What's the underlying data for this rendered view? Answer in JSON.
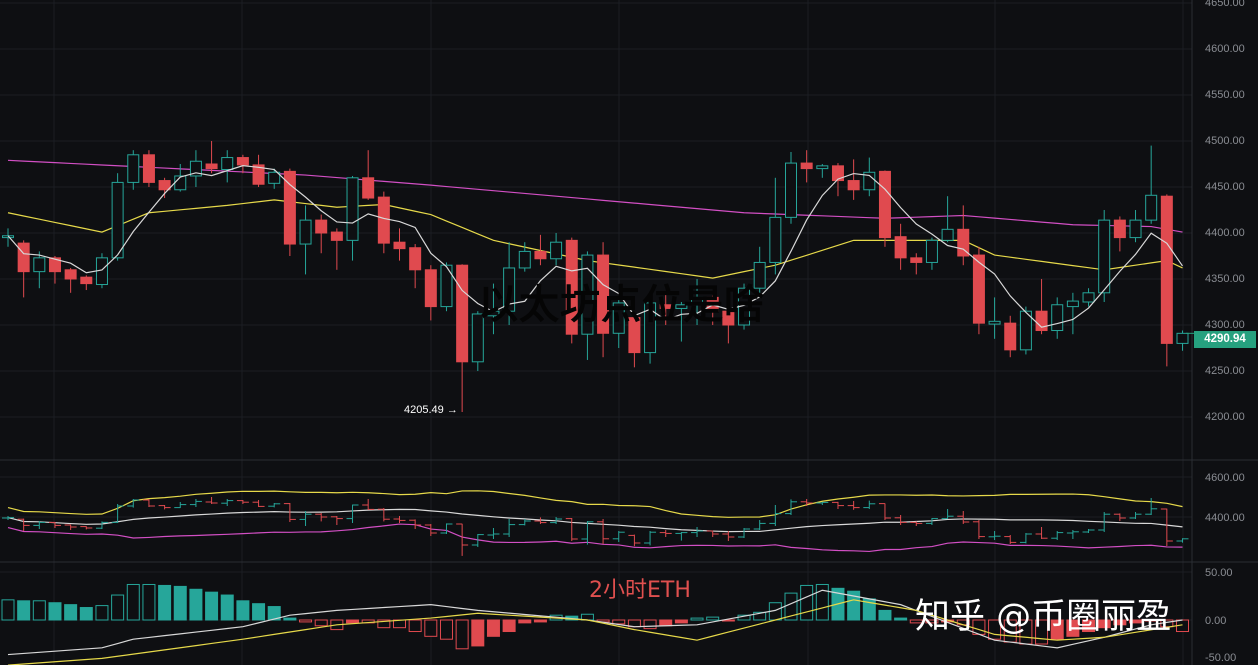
{
  "chart_data": {
    "type": "candlestick",
    "title": "以太坊点位是啥",
    "period_label": "2小时ETH",
    "colors": {
      "up": "#26a69a",
      "down": "#e04a4f",
      "ma_fast": "#d8d8d8",
      "ma_mid": "#e6d94a",
      "ma_slow": "#d24fc4",
      "background": "#0e0f12",
      "grid": "#1c1e23",
      "axis_text": "#8a8d93",
      "last_price_bg": "#26a17f"
    },
    "price_axis": {
      "ylim": [
        4200,
        4650
      ],
      "ticks": [
        "4650.00",
        "4600.00",
        "4550.00",
        "4500.00",
        "4450.00",
        "4400.00",
        "4350.00",
        "4300.00",
        "4250.00",
        "4200.00"
      ]
    },
    "last_price": "4290.94",
    "low_marker": "4205.49 →",
    "candles_ohlc": [
      [
        4395,
        4405,
        4385,
        4397
      ],
      [
        4389,
        4392,
        4330,
        4358
      ],
      [
        4358,
        4380,
        4340,
        4373
      ],
      [
        4373,
        4375,
        4345,
        4358
      ],
      [
        4360,
        4362,
        4335,
        4350
      ],
      [
        4352,
        4354,
        4338,
        4345
      ],
      [
        4344,
        4378,
        4340,
        4373
      ],
      [
        4373,
        4465,
        4370,
        4455
      ],
      [
        4455,
        4490,
        4447,
        4485
      ],
      [
        4485,
        4490,
        4450,
        4455
      ],
      [
        4457,
        4460,
        4438,
        4447
      ],
      [
        4447,
        4475,
        4445,
        4462
      ],
      [
        4462,
        4490,
        4450,
        4478
      ],
      [
        4475,
        4500,
        4465,
        4470
      ],
      [
        4469,
        4490,
        4455,
        4482
      ],
      [
        4482,
        4485,
        4465,
        4474
      ],
      [
        4474,
        4485,
        4450,
        4453
      ],
      [
        4454,
        4470,
        4448,
        4466
      ],
      [
        4467,
        4470,
        4375,
        4388
      ],
      [
        4388,
        4430,
        4355,
        4414
      ],
      [
        4414,
        4420,
        4378,
        4400
      ],
      [
        4401,
        4405,
        4360,
        4392
      ],
      [
        4392,
        4462,
        4370,
        4460
      ],
      [
        4460,
        4490,
        4436,
        4438
      ],
      [
        4439,
        4445,
        4378,
        4389
      ],
      [
        4390,
        4405,
        4370,
        4383
      ],
      [
        4384,
        4388,
        4340,
        4360
      ],
      [
        4360,
        4365,
        4305,
        4320
      ],
      [
        4320,
        4368,
        4315,
        4365
      ],
      [
        4365,
        4366,
        4205.49,
        4260
      ],
      [
        4260,
        4315,
        4250,
        4312
      ],
      [
        4310,
        4345,
        4290,
        4315
      ],
      [
        4315,
        4390,
        4300,
        4362
      ],
      [
        4362,
        4390,
        4358,
        4380
      ],
      [
        4380,
        4398,
        4365,
        4372
      ],
      [
        4372,
        4400,
        4365,
        4390
      ],
      [
        4392,
        4395,
        4280,
        4290
      ],
      [
        4290,
        4380,
        4262,
        4376
      ],
      [
        4376,
        4390,
        4265,
        4291
      ],
      [
        4291,
        4330,
        4275,
        4324
      ],
      [
        4308,
        4312,
        4254,
        4270
      ],
      [
        4270,
        4330,
        4258,
        4324
      ],
      [
        4322,
        4335,
        4300,
        4318
      ],
      [
        4318,
        4325,
        4282,
        4322
      ],
      [
        4322,
        4350,
        4300,
        4330
      ],
      [
        4330,
        4332,
        4300,
        4315
      ],
      [
        4315,
        4330,
        4280,
        4300
      ],
      [
        4300,
        4345,
        4295,
        4340
      ],
      [
        4340,
        4385,
        4335,
        4368
      ],
      [
        4368,
        4460,
        4355,
        4417
      ],
      [
        4417,
        4488,
        4410,
        4476
      ],
      [
        4476,
        4490,
        4455,
        4470
      ],
      [
        4470,
        4475,
        4460,
        4473
      ],
      [
        4473,
        4476,
        4440,
        4457
      ],
      [
        4457,
        4480,
        4436,
        4447
      ],
      [
        4447,
        4482,
        4440,
        4466
      ],
      [
        4467,
        4468,
        4385,
        4395
      ],
      [
        4396,
        4410,
        4360,
        4373
      ],
      [
        4373,
        4378,
        4355,
        4368
      ],
      [
        4368,
        4395,
        4360,
        4392
      ],
      [
        4392,
        4440,
        4390,
        4404
      ],
      [
        4404,
        4430,
        4365,
        4375
      ],
      [
        4376,
        4385,
        4290,
        4302
      ],
      [
        4301,
        4330,
        4285,
        4304
      ],
      [
        4302,
        4310,
        4265,
        4273
      ],
      [
        4273,
        4320,
        4268,
        4315
      ],
      [
        4315,
        4350,
        4290,
        4294
      ],
      [
        4294,
        4330,
        4285,
        4322
      ],
      [
        4320,
        4335,
        4290,
        4326
      ],
      [
        4325,
        4340,
        4320,
        4335
      ],
      [
        4335,
        4425,
        4325,
        4414
      ],
      [
        4414,
        4418,
        4380,
        4395
      ],
      [
        4395,
        4425,
        4390,
        4414
      ],
      [
        4414,
        4495,
        4410,
        4441
      ],
      [
        4440,
        4442,
        4255,
        4280
      ],
      [
        4280,
        4294,
        4272,
        4290.94
      ]
    ],
    "ma_mid_points": [
      [
        0,
        4422
      ],
      [
        6,
        4401
      ],
      [
        9,
        4422
      ],
      [
        14,
        4430
      ],
      [
        17,
        4436
      ],
      [
        21,
        4428
      ],
      [
        24,
        4431
      ],
      [
        27,
        4420
      ],
      [
        31,
        4392
      ],
      [
        37,
        4370
      ],
      [
        45,
        4351
      ],
      [
        49,
        4365
      ],
      [
        54,
        4392
      ],
      [
        61,
        4392
      ],
      [
        63,
        4376
      ],
      [
        70,
        4360
      ],
      [
        74,
        4370
      ],
      [
        75,
        4362
      ]
    ],
    "ma_slow_points": [
      [
        0,
        4479
      ],
      [
        19,
        4463
      ],
      [
        27,
        4452
      ],
      [
        47,
        4422
      ],
      [
        56,
        4416
      ],
      [
        61,
        4419
      ],
      [
        68,
        4409
      ],
      [
        73,
        4407
      ],
      [
        75,
        4401
      ]
    ],
    "band_panel": {
      "ylim": [
        4200,
        4650
      ],
      "ticks": [
        "4600.00",
        "4400.00"
      ]
    },
    "macd_panel": {
      "ylim": [
        -50,
        60
      ],
      "ticks": [
        "50.00",
        "0.00",
        "-50.00"
      ],
      "histogram": [
        21,
        20,
        20,
        18,
        16,
        13,
        15,
        26,
        37,
        37,
        36,
        35,
        32,
        29,
        26,
        20,
        17,
        14,
        2,
        -2,
        -6,
        -10,
        -3,
        -3,
        -8,
        -8,
        -12,
        -17,
        -20,
        -30,
        -27,
        -17,
        -12,
        -3,
        -2,
        5,
        4,
        6,
        -2,
        -4,
        -7,
        -9,
        -6,
        -3,
        2,
        3,
        -1,
        5,
        8,
        18,
        28,
        36,
        37,
        33,
        30,
        22,
        10,
        2,
        -3,
        -3,
        -2,
        -5,
        -15,
        -20,
        -23,
        -25,
        -25,
        -20,
        -17,
        -12,
        -8,
        -5,
        -3,
        -1,
        -7,
        -12
      ],
      "dif_points": [
        [
          0,
          -36
        ],
        [
          6,
          -29
        ],
        [
          8,
          -20
        ],
        [
          15,
          -7
        ],
        [
          18,
          5
        ],
        [
          21,
          10
        ],
        [
          27,
          16
        ],
        [
          30,
          10
        ],
        [
          37,
          0
        ],
        [
          40,
          -7
        ],
        [
          44,
          -5
        ],
        [
          49,
          10
        ],
        [
          52,
          31
        ],
        [
          57,
          16
        ],
        [
          63,
          -21
        ],
        [
          67,
          -29
        ],
        [
          70,
          -18
        ],
        [
          73,
          -5
        ],
        [
          75,
          0
        ]
      ],
      "dea_points": [
        [
          0,
          -47
        ],
        [
          6,
          -40
        ],
        [
          15,
          -20
        ],
        [
          21,
          -5
        ],
        [
          27,
          2
        ],
        [
          30,
          7
        ],
        [
          37,
          0
        ],
        [
          40,
          -10
        ],
        [
          44,
          -21
        ],
        [
          49,
          0
        ],
        [
          54,
          21
        ],
        [
          58,
          10
        ],
        [
          63,
          -15
        ],
        [
          67,
          -21
        ],
        [
          70,
          -18
        ],
        [
          75,
          -5
        ]
      ]
    }
  },
  "watermark": "知乎 @币圈丽盈"
}
